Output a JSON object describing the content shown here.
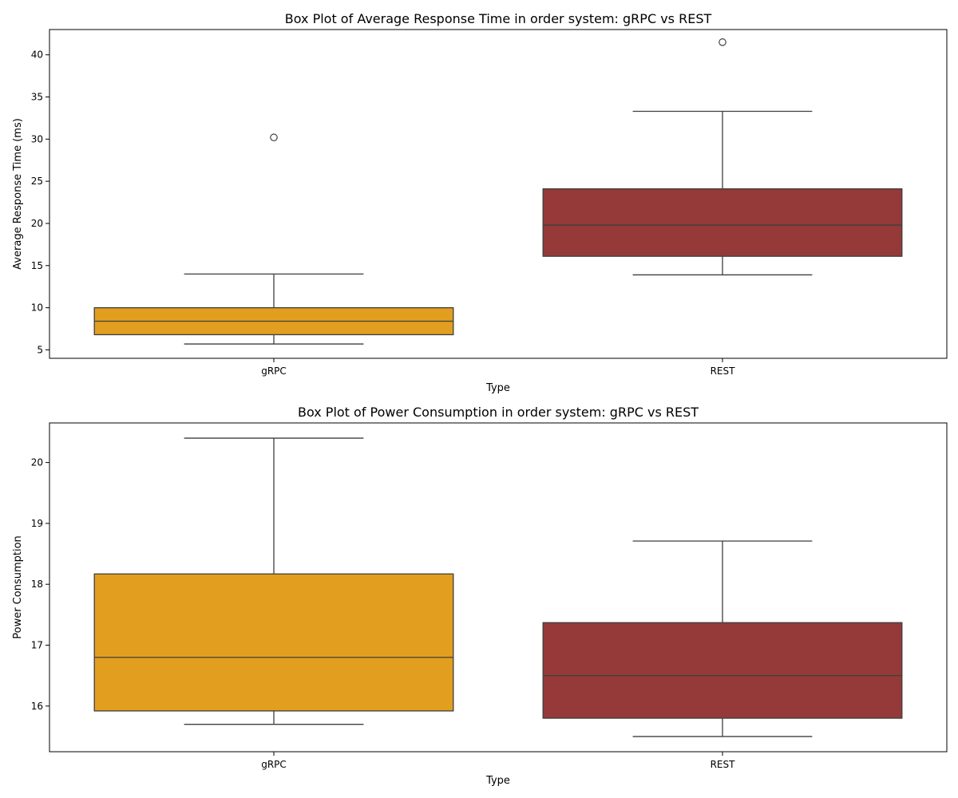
{
  "chart_data": [
    {
      "type": "box",
      "title": "Box Plot of Average Response Time in order system: gRPC vs REST",
      "xlabel": "Type",
      "ylabel": "Average Response Time (ms)",
      "ylim": [
        4,
        43
      ],
      "yticks": [
        5,
        10,
        15,
        20,
        25,
        30,
        35,
        40
      ],
      "categories": [
        "gRPC",
        "REST"
      ],
      "boxes": [
        {
          "category": "gRPC",
          "whisker_low": 5.7,
          "q1": 6.8,
          "median": 8.4,
          "q3": 10.0,
          "whisker_high": 14.0,
          "outliers": [
            30.2
          ],
          "color": "#e29e1e"
        },
        {
          "category": "REST",
          "whisker_low": 13.9,
          "q1": 16.1,
          "median": 19.8,
          "q3": 24.1,
          "whisker_high": 33.3,
          "outliers": [
            41.5
          ],
          "color": "#953939"
        }
      ],
      "grid": false,
      "legend": "none"
    },
    {
      "type": "box",
      "title": "Box Plot of Power Consumption in order system: gRPC vs REST",
      "xlabel": "Type",
      "ylabel": "Power Consumption",
      "ylim": [
        15.25,
        20.65
      ],
      "yticks": [
        16,
        17,
        18,
        19,
        20
      ],
      "categories": [
        "gRPC",
        "REST"
      ],
      "boxes": [
        {
          "category": "gRPC",
          "whisker_low": 15.7,
          "q1": 15.92,
          "median": 16.8,
          "q3": 18.17,
          "whisker_high": 20.4,
          "outliers": [],
          "color": "#e29e1e"
        },
        {
          "category": "REST",
          "whisker_low": 15.5,
          "q1": 15.8,
          "median": 16.5,
          "q3": 17.37,
          "whisker_high": 18.71,
          "outliers": [],
          "color": "#953939"
        }
      ],
      "grid": false,
      "legend": "none"
    }
  ]
}
